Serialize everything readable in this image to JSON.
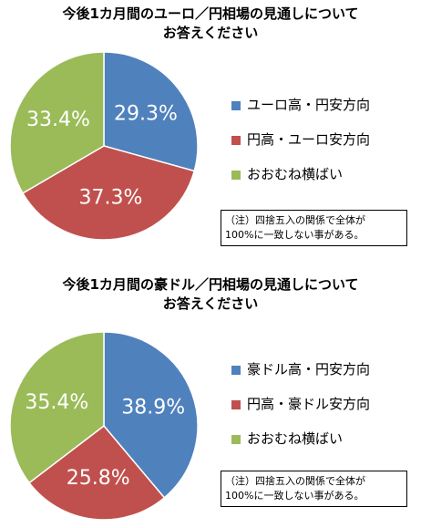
{
  "colors": {
    "blue": "#4f81bd",
    "red": "#c0504d",
    "green": "#9bbb59"
  },
  "chart_data": [
    {
      "type": "pie",
      "title_lines": [
        "今後1カ月間のユーロ／円相場の見通しについて",
        "お答えください"
      ],
      "categories": [
        "ユーロ高・円安方向",
        "円高・ユーロ安方向",
        "おおむね横ばい"
      ],
      "values": [
        29.3,
        37.3,
        33.4
      ],
      "labels": [
        "29.3%",
        "37.3%",
        "33.4%"
      ],
      "colors": [
        "#4f81bd",
        "#c0504d",
        "#9bbb59"
      ],
      "legend_position": "right",
      "note_lines": [
        "（注）四捨五入の関係で全体が",
        "100%に一致しない事がある。"
      ]
    },
    {
      "type": "pie",
      "title_lines": [
        "今後1カ月間の豪ドル／円相場の見通しについて",
        "お答えください"
      ],
      "categories": [
        "豪ドル高・円安方向",
        "円高・豪ドル安方向",
        "おおむね横ばい"
      ],
      "values": [
        38.9,
        25.8,
        35.4
      ],
      "labels": [
        "38.9%",
        "25.8%",
        "35.4%"
      ],
      "colors": [
        "#4f81bd",
        "#c0504d",
        "#9bbb59"
      ],
      "legend_position": "right",
      "note_lines": [
        "（注）四捨五入の関係で全体が",
        "100%に一致しない事がある。"
      ]
    }
  ]
}
